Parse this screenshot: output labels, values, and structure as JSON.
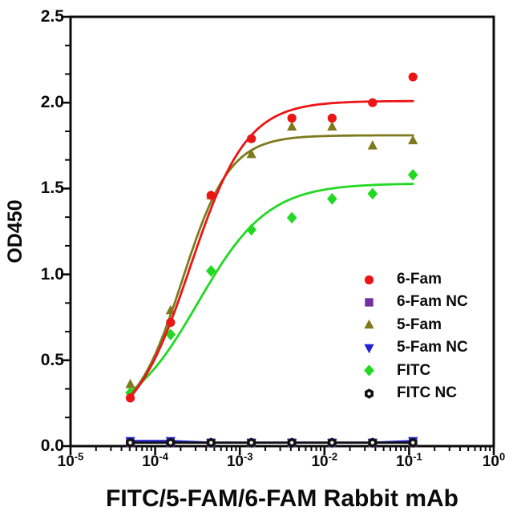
{
  "figure": {
    "background": "#ffffff",
    "frame_color": "#0b0b0b"
  },
  "chart_data": {
    "type": "scatter",
    "title": "",
    "xlabel": "FITC/5-FAM/6-FAM Rabbit mAb",
    "ylabel": "OD450",
    "x_scale": "log",
    "xlim": [
      1e-05,
      1
    ],
    "ylim": [
      0.0,
      2.5
    ],
    "grid": "off",
    "x_tick_labels": [
      {
        "base": "10",
        "exp": "-5"
      },
      {
        "base": "10",
        "exp": "-4"
      },
      {
        "base": "10",
        "exp": "-3"
      },
      {
        "base": "10",
        "exp": "-2"
      },
      {
        "base": "10",
        "exp": "-1"
      },
      {
        "base": "10",
        "exp": "0"
      }
    ],
    "y_tick_labels": [
      "0.0",
      "0.5",
      "1.0",
      "1.5",
      "2.0",
      "2.5"
    ],
    "x_values": [
      5.08e-05,
      0.000152,
      0.000457,
      0.00137,
      0.00412,
      0.0123,
      0.037,
      0.111
    ],
    "series": [
      {
        "name": "6-Fam",
        "marker": "circle",
        "color": "#ec1515",
        "values": [
          0.28,
          0.72,
          1.46,
          1.79,
          1.91,
          1.91,
          2.0,
          2.15
        ],
        "fit": {
          "bottom": 0.08,
          "top": 2.01,
          "ec50": 0.00026,
          "hill": 1.3
        }
      },
      {
        "name": "6-Fam NC",
        "marker": "square",
        "color": "#7030a0",
        "values": [
          0.02,
          0.02,
          0.02,
          0.02,
          0.02,
          0.02,
          0.02,
          0.02
        ]
      },
      {
        "name": "5-Fam",
        "marker": "triangle-up",
        "color": "#7d7a1e",
        "values": [
          0.36,
          0.79,
          1.46,
          1.7,
          1.86,
          1.86,
          1.75,
          1.78
        ],
        "fit": {
          "bottom": 0.13,
          "top": 1.81,
          "ec50": 0.00021,
          "hill": 1.55
        }
      },
      {
        "name": "5-Fam NC",
        "marker": "triangle-down",
        "color": "#2121d6",
        "values": [
          0.03,
          0.03,
          0.02,
          0.02,
          0.02,
          0.02,
          0.02,
          0.03
        ]
      },
      {
        "name": "FITC",
        "marker": "diamond",
        "color": "#22d822",
        "values": [
          0.31,
          0.65,
          1.02,
          1.26,
          1.33,
          1.44,
          1.47,
          1.58
        ],
        "fit": {
          "bottom": 0.14,
          "top": 1.53,
          "ec50": 0.00032,
          "hill": 1.05
        }
      },
      {
        "name": "FITC NC",
        "marker": "hexagon-dot",
        "color": "#111111",
        "values": [
          0.02,
          0.02,
          0.02,
          0.02,
          0.02,
          0.02,
          0.02,
          0.02
        ]
      }
    ],
    "legend": {
      "position": "inside-right",
      "items": [
        "6-Fam",
        "6-Fam NC",
        "5-Fam",
        "5-Fam NC",
        "FITC",
        "FITC NC"
      ]
    }
  }
}
